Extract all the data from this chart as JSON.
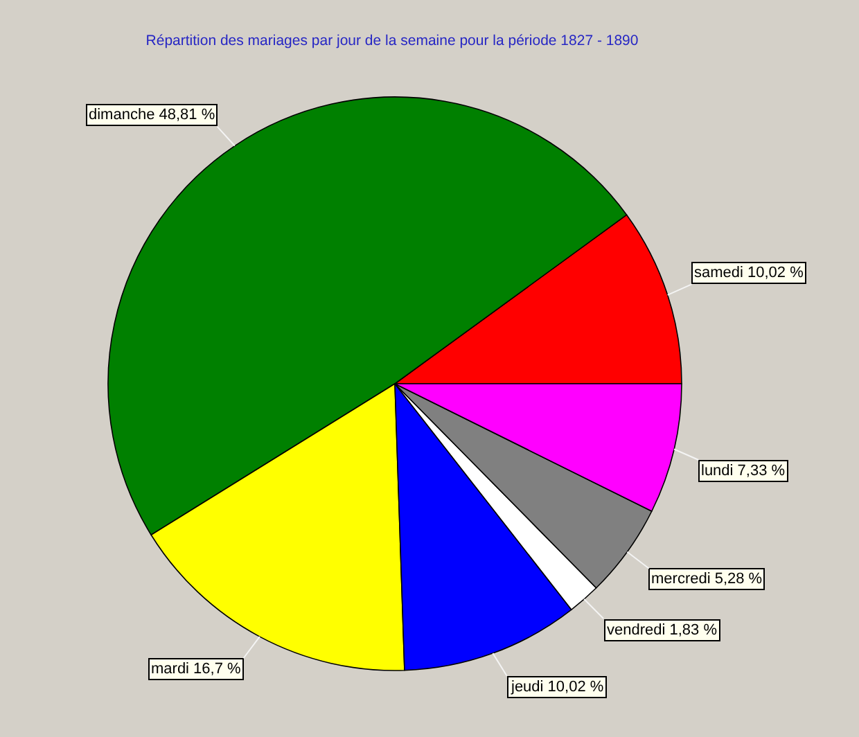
{
  "chart_data": {
    "type": "pie",
    "title": "Répartition des mariages par jour de la semaine pour la période 1827 - 1890",
    "categories": [
      "samedi",
      "dimanche",
      "mardi",
      "jeudi",
      "vendredi",
      "mercredi",
      "lundi"
    ],
    "values": [
      10.02,
      48.81,
      16.7,
      10.02,
      1.83,
      5.28,
      7.33
    ],
    "colors": [
      "#ff0000",
      "#008000",
      "#ffff00",
      "#0000ff",
      "#ffffff",
      "#808080",
      "#ff00ff"
    ],
    "value_labels": [
      "10,02 %",
      "48,81 %",
      "16,7 %",
      "10,02 %",
      "1,83 %",
      "5,28 %",
      "7,33 %"
    ]
  }
}
